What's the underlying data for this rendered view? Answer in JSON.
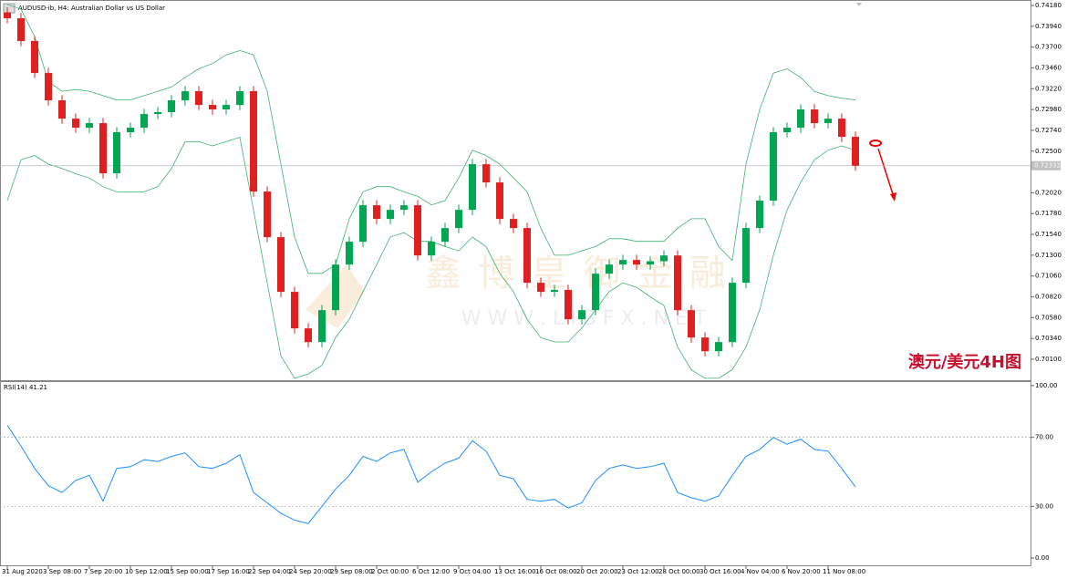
{
  "chart_data": [
    {
      "type": "candlestick",
      "title": "AUDUSD-ib, H4:  Australian Dollar vs US Dollar",
      "annotation": "澳元/美元4H图",
      "watermark": "鑫博皇御金融",
      "watermark_url": "W W W . L I B F X . N E T",
      "up_color": "#00a651",
      "down_color": "#e02020",
      "open": [
        0.741,
        0.74033,
        0.7377,
        0.73401,
        0.73086,
        0.72875,
        0.7277,
        0.72823,
        0.72244,
        0.72718,
        0.7277,
        0.72928,
        0.7295,
        0.73086,
        0.73191,
        0.73033,
        0.72981,
        0.73033,
        0.73191,
        0.72034,
        0.71508,
        0.70877,
        0.70456,
        0.70298,
        0.70666,
        0.71192,
        0.71455,
        0.71876,
        0.71718,
        0.71823,
        0.71876,
        0.71297,
        0.71455,
        0.71613,
        0.71823,
        0.72349,
        0.72139,
        0.71718,
        0.71613,
        0.70982,
        0.70877,
        0.709,
        0.70561,
        0.70666,
        0.71087,
        0.71192,
        0.71245,
        0.71192,
        0.7123,
        0.71297,
        0.70666,
        0.70351,
        0.70193,
        0.70298,
        0.70982,
        0.71613,
        0.71929,
        0.72718,
        0.7277,
        0.72981,
        0.72823,
        0.72875,
        0.72665
      ],
      "high": [
        0.7416,
        0.74093,
        0.7383,
        0.73461,
        0.73146,
        0.72935,
        0.72883,
        0.72883,
        0.72778,
        0.7283,
        0.72988,
        0.7301,
        0.73146,
        0.73251,
        0.73251,
        0.73093,
        0.73093,
        0.73251,
        0.73251,
        0.72094,
        0.71568,
        0.70937,
        0.70516,
        0.70726,
        0.71252,
        0.71515,
        0.71936,
        0.71936,
        0.71883,
        0.71936,
        0.71936,
        0.71515,
        0.71673,
        0.71883,
        0.72409,
        0.72409,
        0.72199,
        0.71778,
        0.71673,
        0.71042,
        0.7096,
        0.7096,
        0.70726,
        0.71147,
        0.71252,
        0.71305,
        0.71305,
        0.7129,
        0.71357,
        0.71357,
        0.70726,
        0.70411,
        0.70358,
        0.71042,
        0.71673,
        0.71989,
        0.72778,
        0.7283,
        0.73041,
        0.73041,
        0.72935,
        0.72935,
        0.72725
      ],
      "low": [
        0.73973,
        0.7371,
        0.73341,
        0.73026,
        0.72815,
        0.7271,
        0.7271,
        0.72184,
        0.72184,
        0.72658,
        0.7271,
        0.72868,
        0.7289,
        0.73026,
        0.72973,
        0.72921,
        0.72921,
        0.72973,
        0.71974,
        0.71448,
        0.70817,
        0.70396,
        0.70238,
        0.70238,
        0.70606,
        0.71132,
        0.71395,
        0.71658,
        0.71658,
        0.71763,
        0.71237,
        0.71237,
        0.71395,
        0.71553,
        0.71763,
        0.72079,
        0.71658,
        0.71553,
        0.70922,
        0.70817,
        0.70817,
        0.70501,
        0.70501,
        0.70606,
        0.71027,
        0.71132,
        0.71132,
        0.71132,
        0.7117,
        0.70606,
        0.70291,
        0.70133,
        0.70133,
        0.70238,
        0.70922,
        0.71553,
        0.71869,
        0.72658,
        0.7271,
        0.72763,
        0.72763,
        0.72605,
        0.72272
      ],
      "close": [
        0.74033,
        0.7377,
        0.73401,
        0.73086,
        0.72875,
        0.7277,
        0.72823,
        0.72244,
        0.72718,
        0.7277,
        0.72928,
        0.7295,
        0.73086,
        0.73191,
        0.73033,
        0.72981,
        0.73033,
        0.73191,
        0.72034,
        0.71508,
        0.70877,
        0.70456,
        0.70298,
        0.70666,
        0.71192,
        0.71455,
        0.71876,
        0.71718,
        0.71823,
        0.71876,
        0.71297,
        0.71455,
        0.71613,
        0.71823,
        0.72349,
        0.72139,
        0.71718,
        0.71613,
        0.70982,
        0.70877,
        0.709,
        0.70561,
        0.70666,
        0.71087,
        0.71192,
        0.71245,
        0.71192,
        0.7123,
        0.71297,
        0.70666,
        0.70351,
        0.70193,
        0.70298,
        0.70982,
        0.71613,
        0.71929,
        0.72718,
        0.7277,
        0.72981,
        0.72823,
        0.72875,
        0.72665,
        0.72332
      ],
      "series": [
        {
          "color": "#3cb371",
          "values": [
            0.7419,
            0.7414,
            0.7382,
            0.733,
            0.7319,
            0.7321,
            0.7319,
            0.7314,
            0.7309,
            0.7309,
            0.7314,
            0.7319,
            0.7324,
            0.7335,
            0.7345,
            0.7351,
            0.7361,
            0.7366,
            0.7361,
            0.7319,
            0.7235,
            0.7151,
            0.7109,
            0.7109,
            0.7119,
            0.7172,
            0.7203,
            0.7209,
            0.7209,
            0.7203,
            0.7198,
            0.7188,
            0.7193,
            0.7219,
            0.7251,
            0.7245,
            0.7235,
            0.7219,
            0.7203,
            0.7161,
            0.713,
            0.713,
            0.7135,
            0.714,
            0.7149,
            0.7149,
            0.7146,
            0.7146,
            0.7146,
            0.7161,
            0.7172,
            0.7172,
            0.714,
            0.7124,
            0.7235,
            0.7298,
            0.734,
            0.7345,
            0.7335,
            0.7319,
            0.7314,
            0.7311,
            0.7309
          ]
        },
        {
          "color": "#3cb371",
          "values": [
            0.7193,
            0.724,
            0.7245,
            0.7235,
            0.723,
            0.7224,
            0.7219,
            0.7209,
            0.7203,
            0.7203,
            0.7203,
            0.7209,
            0.723,
            0.7261,
            0.7261,
            0.7256,
            0.7261,
            0.7266,
            0.7182,
            0.7098,
            0.7014,
            0.6988,
            0.6993,
            0.7003,
            0.7035,
            0.7056,
            0.7088,
            0.7119,
            0.7151,
            0.7156,
            0.7146,
            0.7146,
            0.714,
            0.7135,
            0.7151,
            0.714,
            0.7109,
            0.7088,
            0.7056,
            0.7035,
            0.703,
            0.703,
            0.7046,
            0.7067,
            0.7088,
            0.7098,
            0.7093,
            0.7082,
            0.7072,
            0.7024,
            0.6998,
            0.6988,
            0.6988,
            0.6998,
            0.7024,
            0.7067,
            0.713,
            0.7182,
            0.7214,
            0.724,
            0.7251,
            0.7256,
            0.7251
          ]
        }
      ],
      "current_price": {
        "value": 0.72332,
        "label": "0.72332"
      },
      "ylim": [
        0.69858,
        0.74243
      ],
      "yticks": [
        {
          "value": 0.7418,
          "label": "0.74180"
        },
        {
          "value": 0.7394,
          "label": "0.73940"
        },
        {
          "value": 0.737,
          "label": "0.73700"
        },
        {
          "value": 0.7346,
          "label": "0.73460"
        },
        {
          "value": 0.7322,
          "label": "0.73220"
        },
        {
          "value": 0.7298,
          "label": "0.72980"
        },
        {
          "value": 0.7274,
          "label": "0.72740"
        },
        {
          "value": 0.725,
          "label": "0.72500"
        },
        {
          "value": 0.7202,
          "label": "0.72020"
        },
        {
          "value": 0.7178,
          "label": "0.71780"
        },
        {
          "value": 0.7154,
          "label": "0.71540"
        },
        {
          "value": 0.713,
          "label": "0.71300"
        },
        {
          "value": 0.7106,
          "label": "0.71060"
        },
        {
          "value": 0.7082,
          "label": "0.70820"
        },
        {
          "value": 0.7058,
          "label": "0.70580"
        },
        {
          "value": 0.7034,
          "label": "0.70340"
        },
        {
          "value": 0.701,
          "label": "0.70100"
        }
      ]
    },
    {
      "type": "line",
      "title": "RSI(14) 41.21",
      "color": "#1e90ff",
      "categories": [
        "31 Aug 2020",
        null,
        null,
        "3 Sep 08:00",
        null,
        null,
        "7 Sep 20:00",
        null,
        null,
        "10 Sep 12:00",
        null,
        null,
        "15 Sep 00:00",
        null,
        null,
        "17 Sep 16:00",
        null,
        null,
        "22 Sep 04:00",
        null,
        null,
        "24 Sep 20:00",
        null,
        null,
        "29 Sep 08:00",
        null,
        null,
        "2 Oct 00:00",
        null,
        null,
        "6 Oct 12:00",
        null,
        null,
        "9 Oct 04:00",
        null,
        null,
        "13 Oct 16:00",
        null,
        null,
        "16 Oct 08:00",
        null,
        null,
        "20 Oct 20:00",
        null,
        null,
        "23 Oct 12:00",
        null,
        null,
        "28 Oct 00:00",
        null,
        null,
        "30 Oct 16:00",
        null,
        null,
        "4 Nov 04:00",
        null,
        null,
        "6 Nov 20:00",
        null,
        null,
        "11 Nov 08:00",
        null,
        null
      ],
      "values": [
        77,
        65,
        52,
        42,
        38,
        45,
        48,
        33,
        52,
        53,
        57,
        56,
        59,
        61,
        53,
        52,
        55,
        60,
        38,
        32,
        26,
        22,
        20,
        30,
        40,
        48,
        59,
        56,
        61,
        63,
        44,
        50,
        55,
        58,
        68,
        62,
        48,
        46,
        34,
        33,
        34,
        29,
        32,
        45,
        52,
        54,
        52,
        53,
        55,
        38,
        35,
        33,
        36,
        48,
        59,
        63,
        70,
        66,
        69,
        63,
        62,
        52,
        41.21
      ],
      "ylim": [
        -4.2,
        102.6
      ],
      "yticks": [
        {
          "value": 100,
          "label": "100.00"
        },
        {
          "value": 70,
          "label": "70.00"
        },
        {
          "value": 30,
          "label": "30.00"
        },
        {
          "value": 0,
          "label": "0.00"
        }
      ]
    }
  ]
}
